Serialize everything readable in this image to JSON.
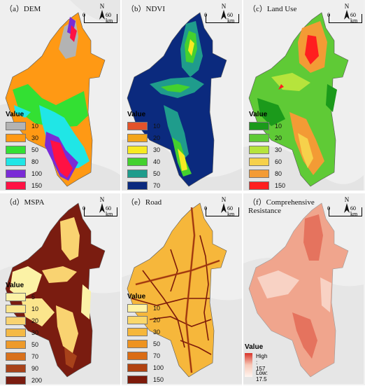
{
  "panels": [
    {
      "title": "（a）DEM",
      "legend_title": "Value",
      "legend": [
        {
          "label": "10",
          "color": "#b3b3b3"
        },
        {
          "label": "30",
          "color": "#ff9914"
        },
        {
          "label": "50",
          "color": "#33e033"
        },
        {
          "label": "80",
          "color": "#20e6e6"
        },
        {
          "label": "100",
          "color": "#7a2bd6"
        },
        {
          "label": "150",
          "color": "#ff1144"
        }
      ],
      "north": "N",
      "scale_zero": "0",
      "scale_end": "60 km"
    },
    {
      "title": "（b）NDVI",
      "legend_title": "Value",
      "legend": [
        {
          "label": "10",
          "color": "#e2532b"
        },
        {
          "label": "20",
          "color": "#f3a51a"
        },
        {
          "label": "30",
          "color": "#f7ea21"
        },
        {
          "label": "40",
          "color": "#44d12e"
        },
        {
          "label": "50",
          "color": "#1f9c8c"
        },
        {
          "label": "70",
          "color": "#0b2a7e"
        }
      ],
      "north": "N",
      "scale_zero": "0",
      "scale_end": "60 km"
    },
    {
      "title": "（c）Land Use",
      "legend_title": "Value",
      "legend": [
        {
          "label": "10",
          "color": "#1b9a1b"
        },
        {
          "label": "20",
          "color": "#5fca36"
        },
        {
          "label": "30",
          "color": "#b6e43c"
        },
        {
          "label": "60",
          "color": "#f6d14b"
        },
        {
          "label": "80",
          "color": "#f39b35"
        },
        {
          "label": "150",
          "color": "#ff1f1f"
        }
      ],
      "north": "N",
      "scale_zero": "0",
      "scale_end": "60 km"
    },
    {
      "title": "（d）MSPA",
      "legend_title": "Value",
      "legend": [
        {
          "label": "5",
          "color": "#fbf2a6"
        },
        {
          "label": "10",
          "color": "#fbe58c"
        },
        {
          "label": "20",
          "color": "#f9d371"
        },
        {
          "label": "30",
          "color": "#f4b946"
        },
        {
          "label": "50",
          "color": "#ee9a2a"
        },
        {
          "label": "70",
          "color": "#d9711c"
        },
        {
          "label": "90",
          "color": "#a8421a"
        },
        {
          "label": "200",
          "color": "#7a1c10"
        }
      ],
      "north": "N",
      "scale_zero": "0",
      "scale_end": "60 km"
    },
    {
      "title": "（e）Road",
      "legend_title": "Value",
      "legend": [
        {
          "label": "10",
          "color": "#fff3a5"
        },
        {
          "label": "20",
          "color": "#fbd86b"
        },
        {
          "label": "30",
          "color": "#f6b73b"
        },
        {
          "label": "50",
          "color": "#ee9320"
        },
        {
          "label": "70",
          "color": "#da6c14"
        },
        {
          "label": "100",
          "color": "#b14210"
        },
        {
          "label": "150",
          "color": "#7d1a0a"
        }
      ],
      "north": "N",
      "scale_zero": "0",
      "scale_end": "60 km"
    },
    {
      "title": "（f）Comprehensive Resistance",
      "legend_title": "Value",
      "ramp_high": "High : 157",
      "ramp_low": "Low: 17.5",
      "ramp_colors": [
        "#d8342a",
        "#f7c9b8",
        "#fff5f0"
      ],
      "north": "N",
      "scale_zero": "0",
      "scale_end": "60 km"
    }
  ],
  "region_colors": {
    "dem": [
      "#ff9914",
      "#33e033",
      "#20e6e6",
      "#7a2bd6",
      "#ff1144",
      "#b3b3b3"
    ],
    "ndvi": [
      "#0b2a7e",
      "#1f9c8c",
      "#44d12e",
      "#f7ea21"
    ],
    "landuse": [
      "#5fca36",
      "#b6e43c",
      "#1b9a1b",
      "#f39b35",
      "#ff1f1f"
    ],
    "mspa": [
      "#7a1c10",
      "#f9d371",
      "#a8421a",
      "#fbf2a6"
    ],
    "road": [
      "#b14210",
      "#f6b73b",
      "#7d1a0a"
    ],
    "resistance": [
      "#f0a58d",
      "#e5735e",
      "#f8d2c4"
    ]
  }
}
